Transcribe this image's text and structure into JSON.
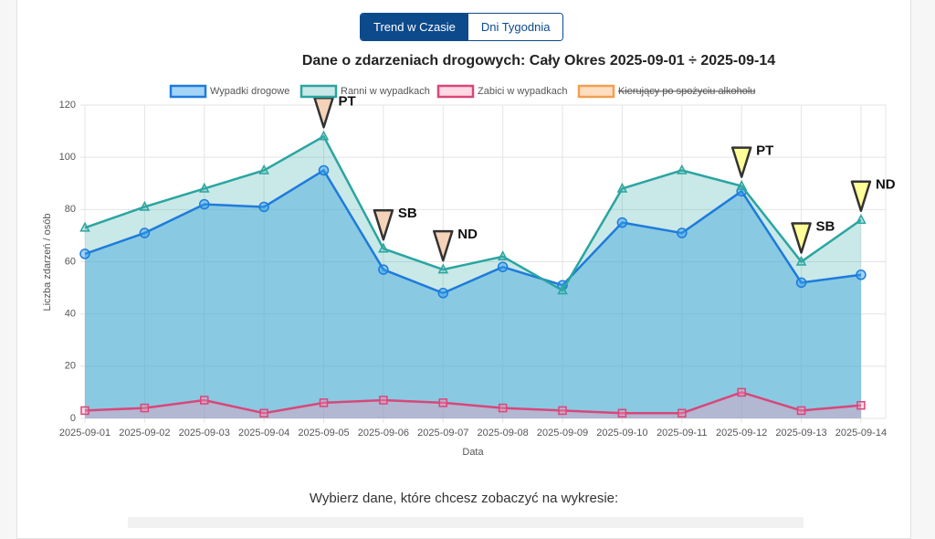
{
  "tabs": [
    {
      "label": "Trend w Czasie",
      "active": true
    },
    {
      "label": "Dni Tygodnia",
      "active": false
    }
  ],
  "chart_data": {
    "type": "area-line",
    "title": "Dane o zdarzeniach drogowych: Cały Okres 2025-09-01 ÷ 2025-09-14",
    "x_label": "Data",
    "y_label": "Liczba zdarzeń / osób",
    "categories": [
      "2025-09-01",
      "2025-09-02",
      "2025-09-03",
      "2025-09-04",
      "2025-09-05",
      "2025-09-06",
      "2025-09-07",
      "2025-09-08",
      "2025-09-09",
      "2025-09-10",
      "2025-09-11",
      "2025-09-12",
      "2025-09-13",
      "2025-09-14"
    ],
    "series": [
      {
        "name": "Wypadki drogowe",
        "color": "#1e7bdc",
        "fill": "rgba(54,162,235,0.45)",
        "marker": "circle",
        "values": [
          63,
          71,
          82,
          81,
          95,
          57,
          48,
          58,
          51,
          75,
          71,
          87,
          52,
          55
        ]
      },
      {
        "name": "Ranni w wypadkach",
        "color": "#2aa5a0",
        "fill": "rgba(75,180,180,0.3)",
        "marker": "triangle",
        "values": [
          73,
          81,
          88,
          95,
          108,
          65,
          57,
          62,
          49,
          88,
          95,
          89,
          60,
          76
        ]
      },
      {
        "name": "Zabici w wypadkach",
        "color": "#d8477a",
        "fill": "rgba(255,150,180,0.35)",
        "marker": "square",
        "values": [
          3,
          4,
          7,
          2,
          6,
          7,
          6,
          4,
          3,
          2,
          2,
          10,
          3,
          5
        ]
      }
    ],
    "legend_hidden": [
      {
        "name": "Kierujący po spożyciu alkoholu",
        "color": "#f0a050"
      }
    ],
    "ylim": [
      0,
      120
    ],
    "yticks": [
      0,
      20,
      40,
      60,
      80,
      100,
      120
    ],
    "grid": true,
    "annotations": [
      {
        "index": 4,
        "label": "PT",
        "color": "#f5d3b8"
      },
      {
        "index": 5,
        "label": "SB",
        "color": "#f5d3b8"
      },
      {
        "index": 6,
        "label": "ND",
        "color": "#f5d3b8"
      },
      {
        "index": 11,
        "label": "PT",
        "color": "#ffff99"
      },
      {
        "index": 12,
        "label": "SB",
        "color": "#ffff99"
      },
      {
        "index": 13,
        "label": "ND",
        "color": "#ffff99"
      }
    ]
  },
  "footer": {
    "prompt": "Wybierz dane, które chcesz zobaczyć na wykresie:"
  }
}
